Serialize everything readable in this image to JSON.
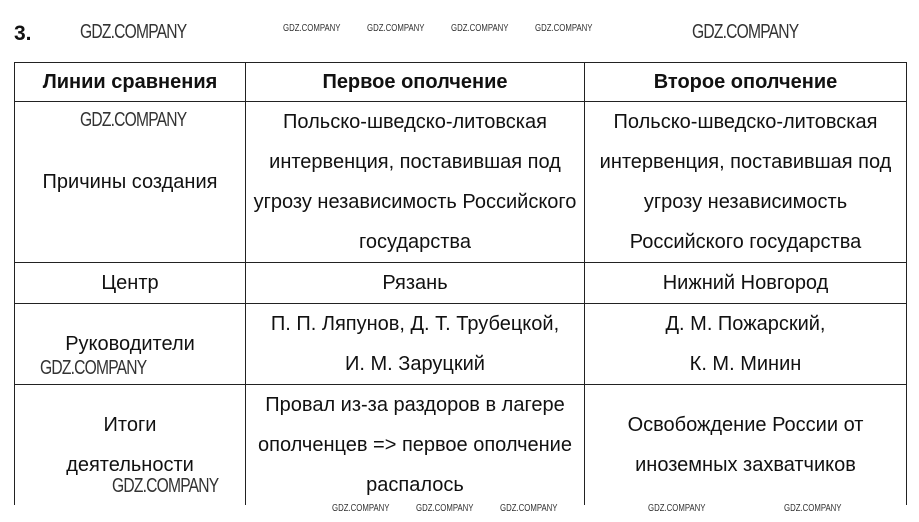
{
  "exercise_number": "3.",
  "watermark": "GDZ.COMPANY",
  "table": {
    "headers": [
      "Линии сравнения",
      "Первое ополчение",
      "Второе ополчение"
    ],
    "rows": [
      {
        "criterion": "Причины создания",
        "first": "Польско-шведско-литовская интервенция, поставившая под угрозу независимость Российского государства",
        "second": "Польско-шведско-литовская интервенция, поставившая под угрозу независимость Российского государства"
      },
      {
        "criterion": "Центр",
        "first": "Рязань",
        "second": "Нижний Новгород"
      },
      {
        "criterion": "Руководители",
        "first": "П. П. Ляпунов, Д. Т. Трубецкой, И. М. Заруцкий",
        "second": "Д. М. Пожарский, К. М. Минин"
      },
      {
        "criterion": "Итоги деятельности",
        "first": "Провал из-за раздоров в лагере ополченцев => первое ополчение распалось",
        "second": "Освобождение России от иноземных захватчиков"
      }
    ]
  }
}
